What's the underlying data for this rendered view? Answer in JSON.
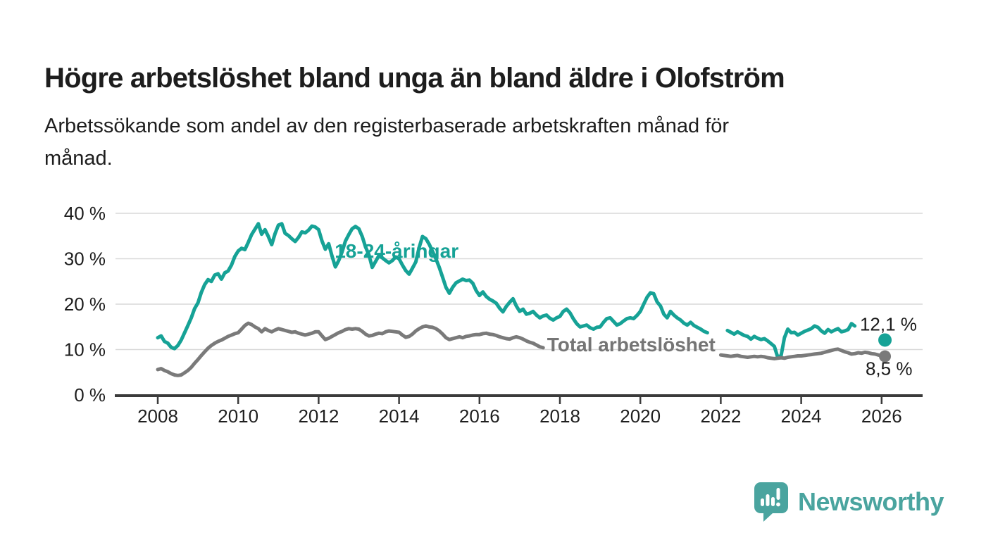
{
  "page": {
    "title": "Högre arbetslöshet bland unga än bland äldre i Olofström",
    "subtitle_line1": "Arbetssökande som andel av den registerbaserade arbetskraften månad för",
    "subtitle_line2": "månad."
  },
  "branding": {
    "logo_text": "Newsworthy",
    "logo_icon": "bar-chart-speech-bubble-icon",
    "logo_color": "#4aa49f"
  },
  "chart_data": {
    "type": "line",
    "title": "Högre arbetslöshet bland unga än bland äldre i Olofström",
    "x_axis": {
      "start_year": 2008,
      "step_months": 1,
      "tick_years": [
        2008,
        2010,
        2012,
        2014,
        2016,
        2018,
        2020,
        2022,
        2024,
        2026
      ],
      "tick_labels": [
        "2008",
        "2010",
        "2012",
        "2014",
        "2016",
        "2018",
        "2020",
        "2022",
        "2024",
        "2026"
      ]
    },
    "y_axis": {
      "ticks": [
        0,
        10,
        20,
        30,
        40
      ],
      "tick_labels": [
        "0 %",
        "10 %",
        "20 %",
        "30 %",
        "40 %"
      ],
      "ylim": [
        0,
        41
      ],
      "grid": true
    },
    "series": [
      {
        "name": "18-24-åringar",
        "color": "#16a296",
        "monthly_values": [
          12.6,
          13.0,
          11.8,
          11.4,
          10.5,
          10.2,
          10.9,
          12.1,
          13.7,
          15.3,
          17.0,
          19.0,
          20.3,
          22.6,
          24.3,
          25.4,
          25.0,
          26.4,
          26.7,
          25.5,
          26.9,
          27.3,
          28.6,
          30.5,
          31.7,
          32.3,
          32.0,
          33.6,
          35.3,
          36.5,
          37.7,
          35.4,
          36.4,
          34.9,
          33.1,
          35.5,
          37.4,
          37.7,
          35.6,
          35.1,
          34.4,
          33.8,
          34.7,
          35.9,
          35.7,
          36.3,
          37.2,
          37.0,
          36.4,
          33.9,
          32.1,
          33.3,
          30.6,
          28.2,
          29.6,
          31.5,
          33.9,
          35.3,
          36.6,
          37.1,
          36.6,
          34.9,
          32.6,
          30.9,
          28.1,
          29.4,
          30.7,
          30.2,
          29.6,
          29.1,
          29.6,
          30.4,
          30.0,
          28.6,
          27.4,
          26.6,
          27.9,
          29.3,
          32.5,
          34.9,
          34.4,
          33.2,
          31.6,
          30.0,
          28.1,
          25.9,
          23.7,
          22.4,
          23.7,
          24.7,
          25.1,
          25.5,
          25.2,
          25.3,
          24.6,
          23.0,
          21.9,
          22.7,
          21.7,
          21.1,
          20.7,
          20.2,
          19.1,
          18.3,
          19.5,
          20.4,
          21.2,
          19.6,
          18.4,
          18.9,
          17.8,
          18.0,
          18.4,
          17.6,
          17.0,
          17.4,
          17.6,
          16.9,
          16.5,
          17.0,
          17.3,
          18.4,
          18.9,
          18.1,
          16.8,
          15.7,
          15.0,
          15.2,
          15.4,
          14.8,
          14.5,
          14.9,
          15.0,
          16.0,
          16.8,
          17.0,
          16.2,
          15.4,
          15.7,
          16.3,
          16.8,
          17.0,
          16.8,
          17.5,
          18.4,
          20.0,
          21.5,
          22.5,
          22.3,
          20.5,
          19.6,
          17.8,
          17.0,
          18.4,
          17.6,
          17.0,
          16.5,
          15.8,
          15.4,
          16.0,
          15.3,
          14.9,
          14.5,
          14.0,
          13.7,
          null,
          null,
          null,
          null,
          null,
          14.2,
          13.8,
          13.4,
          13.9,
          13.5,
          13.1,
          12.9,
          12.3,
          12.9,
          12.5,
          12.2,
          12.4,
          11.9,
          11.3,
          10.7,
          8.3,
          8.7,
          12.6,
          14.5,
          13.7,
          13.8,
          13.2,
          13.6,
          14.0,
          14.3,
          14.6,
          15.2,
          14.9,
          14.1,
          13.6,
          14.4,
          13.9,
          14.3,
          14.6,
          13.9,
          14.1,
          14.4,
          15.7,
          15.2,
          null,
          null,
          null,
          null,
          null,
          null,
          null,
          null,
          12.1
        ]
      },
      {
        "name": "Total arbetslöshet",
        "color": "#7a7a7a",
        "monthly_values": [
          5.6,
          5.8,
          5.4,
          5.1,
          4.7,
          4.4,
          4.3,
          4.4,
          4.9,
          5.4,
          6.1,
          7.0,
          7.8,
          8.7,
          9.5,
          10.3,
          10.9,
          11.4,
          11.8,
          12.1,
          12.5,
          12.9,
          13.2,
          13.5,
          13.7,
          14.5,
          15.3,
          15.8,
          15.5,
          15.0,
          14.6,
          13.9,
          14.6,
          14.2,
          13.9,
          14.3,
          14.6,
          14.4,
          14.2,
          14.0,
          13.8,
          13.9,
          13.6,
          13.4,
          13.2,
          13.4,
          13.6,
          13.9,
          13.9,
          13.0,
          12.2,
          12.5,
          12.9,
          13.3,
          13.7,
          14.0,
          14.4,
          14.6,
          14.5,
          14.6,
          14.5,
          14.0,
          13.4,
          13.0,
          13.1,
          13.4,
          13.6,
          13.5,
          13.9,
          14.1,
          14.0,
          13.9,
          13.8,
          13.2,
          12.7,
          12.9,
          13.4,
          14.1,
          14.6,
          15.0,
          15.2,
          15.0,
          14.9,
          14.6,
          14.1,
          13.4,
          12.6,
          12.2,
          12.4,
          12.6,
          12.8,
          12.6,
          12.9,
          13.0,
          13.2,
          13.3,
          13.3,
          13.5,
          13.6,
          13.4,
          13.3,
          13.1,
          12.8,
          12.6,
          12.4,
          12.3,
          12.6,
          12.8,
          12.6,
          12.3,
          11.9,
          11.6,
          11.4,
          11.0,
          10.6,
          10.4,
          null,
          null,
          null,
          null,
          null,
          null,
          null,
          null,
          null,
          null,
          null,
          null,
          null,
          null,
          null,
          null,
          null,
          null,
          null,
          null,
          null,
          null,
          null,
          null,
          null,
          null,
          null,
          null,
          null,
          null,
          null,
          null,
          null,
          null,
          null,
          null,
          null,
          null,
          null,
          null,
          null,
          null,
          null,
          null,
          null,
          null,
          null,
          null,
          null,
          null,
          null,
          null,
          8.8,
          8.7,
          8.6,
          8.5,
          8.6,
          8.7,
          8.5,
          8.4,
          8.3,
          8.4,
          8.5,
          8.4,
          8.5,
          8.4,
          8.2,
          8.1,
          8.0,
          8.1,
          8.2,
          8.1,
          8.3,
          8.4,
          8.5,
          8.6,
          8.6,
          8.7,
          8.8,
          8.9,
          9.0,
          9.1,
          9.2,
          9.4,
          9.6,
          9.8,
          10.0,
          10.1,
          9.8,
          9.5,
          9.3,
          9.0,
          9.1,
          9.3,
          9.2,
          9.4,
          9.3,
          9.1,
          9.0,
          8.8,
          8.6,
          8.5
        ]
      }
    ],
    "inline_labels": [
      {
        "text": "18-24-åringar",
        "color": "#16a296",
        "x_year": 2012.4,
        "y_pct": 30.2
      },
      {
        "text": "Total arbetslöshet",
        "color": "#757575",
        "x_year": 2017.68,
        "y_pct": 9.6
      }
    ],
    "end_labels": [
      {
        "text": "12,1 %",
        "color": "#1a1a1a",
        "x_year": 2025.46,
        "y_pct": 14.2
      },
      {
        "text": "8,5 %",
        "color": "#1a1a1a",
        "x_year": 2025.6,
        "y_pct": 4.4
      }
    ],
    "end_dots": [
      {
        "series": 0,
        "x_year": 2026.083,
        "y_pct": 12.1
      },
      {
        "series": 1,
        "x_year": 2026.083,
        "y_pct": 8.5
      }
    ],
    "legend_position": "inline",
    "background": "#ffffff",
    "grid_color": "#d9d9d9",
    "axis_color": "#3b3b3b"
  }
}
